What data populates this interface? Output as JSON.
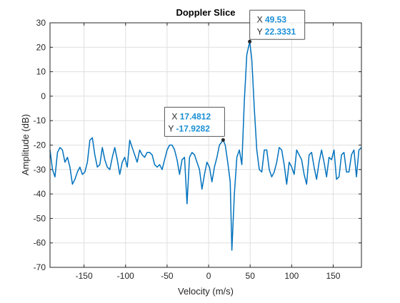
{
  "chart_data": {
    "type": "line",
    "title": "Doppler Slice",
    "x_label": "Velocity (m/s)",
    "y_label": "Amplitude (dB)",
    "color": "#0072bd",
    "grid": true,
    "xlim": [
      -191,
      184
    ],
    "ylim": [
      -70,
      30
    ],
    "xticks": [
      -150,
      -100,
      -50,
      0,
      50,
      100,
      150
    ],
    "yticks": [
      -70,
      -60,
      -50,
      -40,
      -30,
      -20,
      -10,
      0,
      10,
      20,
      30
    ],
    "x": [
      -191,
      -188,
      -185,
      -182,
      -179,
      -176,
      -173,
      -170,
      -167,
      -164,
      -161,
      -158,
      -155,
      -152,
      -149,
      -146,
      -143,
      -140,
      -137,
      -134,
      -131,
      -128,
      -125,
      -122,
      -119,
      -116,
      -113,
      -110,
      -107,
      -104,
      -101,
      -98,
      -95,
      -92,
      -89,
      -86,
      -83,
      -80,
      -77,
      -74,
      -71,
      -68,
      -65,
      -62,
      -59,
      -56,
      -53,
      -50,
      -47,
      -44,
      -41,
      -38,
      -35,
      -32,
      -29,
      -26,
      -23,
      -20,
      -17,
      -14,
      -11,
      -8,
      -5,
      -2,
      1,
      4,
      7,
      10,
      13,
      17.4812,
      20,
      23,
      26,
      28,
      31,
      34,
      37,
      40,
      43,
      46,
      49.53,
      52,
      55,
      58,
      61,
      64,
      67,
      70,
      73,
      76,
      79,
      82,
      85,
      88,
      91,
      94,
      97,
      100,
      103,
      106,
      109,
      112,
      115,
      118,
      121,
      124,
      127,
      130,
      133,
      136,
      139,
      142,
      145,
      148,
      151,
      154,
      157,
      160,
      163,
      166,
      169,
      172,
      175,
      178,
      181,
      184
    ],
    "values": [
      -22,
      -30,
      -33,
      -23,
      -21,
      -22,
      -27,
      -25,
      -29,
      -36,
      -34,
      -31,
      -29,
      -32,
      -31,
      -27,
      -18,
      -17,
      -24,
      -29,
      -28,
      -21,
      -26,
      -29,
      -30,
      -25,
      -21,
      -26,
      -32,
      -27,
      -25,
      -29,
      -18,
      -21,
      -24,
      -27,
      -22,
      -24,
      -25,
      -23,
      -23,
      -24,
      -28,
      -29,
      -28,
      -30,
      -26,
      -22,
      -20,
      -20,
      -22,
      -26,
      -32,
      -26,
      -25,
      -44,
      -25,
      -23,
      -24,
      -27,
      -30,
      -38,
      -32,
      -27,
      -29,
      -35,
      -29,
      -25,
      -20,
      -17.9282,
      -20,
      -27,
      -35,
      -63,
      -40,
      -25,
      -22,
      -28,
      -2,
      17,
      22.3331,
      15,
      -5,
      -22,
      -30,
      -31,
      -22,
      -22,
      -30,
      -33,
      -31,
      -27,
      -21,
      -22,
      -28,
      -36,
      -27,
      -29,
      -32,
      -22,
      -24,
      -26,
      -32,
      -36,
      -24,
      -23,
      -29,
      -34,
      -27,
      -22,
      -27,
      -33,
      -25,
      -26,
      -22,
      -34,
      -33,
      -24,
      -23,
      -31,
      -31,
      -24,
      -22,
      -33,
      -22,
      -21
    ],
    "datatips": [
      {
        "x_text": "X",
        "x": 17.4812,
        "y_text": "Y",
        "y": -17.9282
      },
      {
        "x_text": "X",
        "x": 49.53,
        "y_text": "Y",
        "y": 22.3331
      }
    ]
  }
}
